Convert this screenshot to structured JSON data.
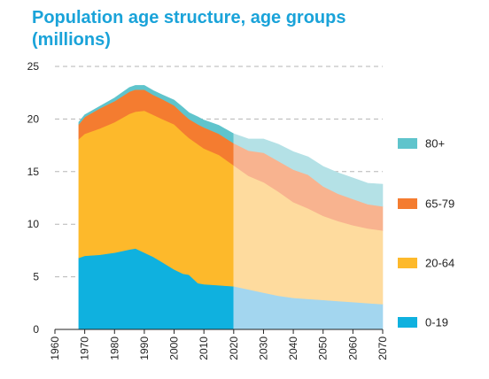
{
  "chart_data": {
    "type": "area",
    "title": "Population age structure, age groups (millions)",
    "xlabel": "",
    "ylabel": "",
    "xlim": [
      1960,
      2070
    ],
    "ylim": [
      0,
      25
    ],
    "x_ticks": [
      "1960",
      "1970",
      "1980",
      "1990",
      "2000",
      "2010",
      "2020",
      "2030",
      "2040",
      "2050",
      "2060",
      "2070"
    ],
    "y_ticks": [
      "0",
      "5",
      "10",
      "15",
      "20",
      "25"
    ],
    "grid": "horizontal dashed",
    "stacked": true,
    "projection_from": 2020,
    "legend_position": "right",
    "x": [
      1968,
      1970,
      1975,
      1980,
      1985,
      1987,
      1990,
      1993,
      1996,
      2000,
      2003,
      2005,
      2008,
      2010,
      2015,
      2020,
      2025,
      2030,
      2035,
      2040,
      2045,
      2050,
      2055,
      2060,
      2065,
      2070
    ],
    "series": [
      {
        "name": "0-19",
        "color": "#0fb1df",
        "projection_color": "#a3d6ef",
        "values": [
          6.8,
          7.0,
          7.1,
          7.3,
          7.6,
          7.7,
          7.3,
          6.9,
          6.4,
          5.7,
          5.3,
          5.2,
          4.4,
          4.3,
          4.2,
          4.1,
          3.8,
          3.5,
          3.2,
          3.0,
          2.9,
          2.8,
          2.7,
          2.6,
          2.5,
          2.4
        ]
      },
      {
        "name": "20-64",
        "color": "#fdb92b",
        "projection_color": "#fedb9e",
        "values": [
          11.3,
          11.6,
          12.0,
          12.4,
          12.9,
          13.0,
          13.5,
          13.5,
          13.6,
          13.8,
          13.4,
          13.0,
          13.2,
          12.9,
          12.4,
          11.5,
          10.8,
          10.5,
          9.9,
          9.1,
          8.6,
          8.0,
          7.6,
          7.3,
          7.1,
          7.0
        ]
      },
      {
        "name": "65-79",
        "color": "#f47c30",
        "projection_color": "#f8b38f",
        "values": [
          1.4,
          1.6,
          1.9,
          2.0,
          2.1,
          2.1,
          2.0,
          1.9,
          1.9,
          1.8,
          1.8,
          1.8,
          1.9,
          2.0,
          2.0,
          2.1,
          2.4,
          2.8,
          2.9,
          3.1,
          3.2,
          2.8,
          2.6,
          2.5,
          2.3,
          2.3
        ]
      },
      {
        "name": "80+",
        "color": "#5fc4cc",
        "projection_color": "#b4e1e6",
        "values": [
          0.2,
          0.2,
          0.2,
          0.3,
          0.4,
          0.4,
          0.4,
          0.4,
          0.4,
          0.5,
          0.6,
          0.6,
          0.7,
          0.7,
          0.8,
          0.9,
          1.1,
          1.3,
          1.6,
          1.7,
          1.7,
          1.9,
          2.0,
          2.0,
          2.0,
          2.1
        ]
      }
    ]
  }
}
